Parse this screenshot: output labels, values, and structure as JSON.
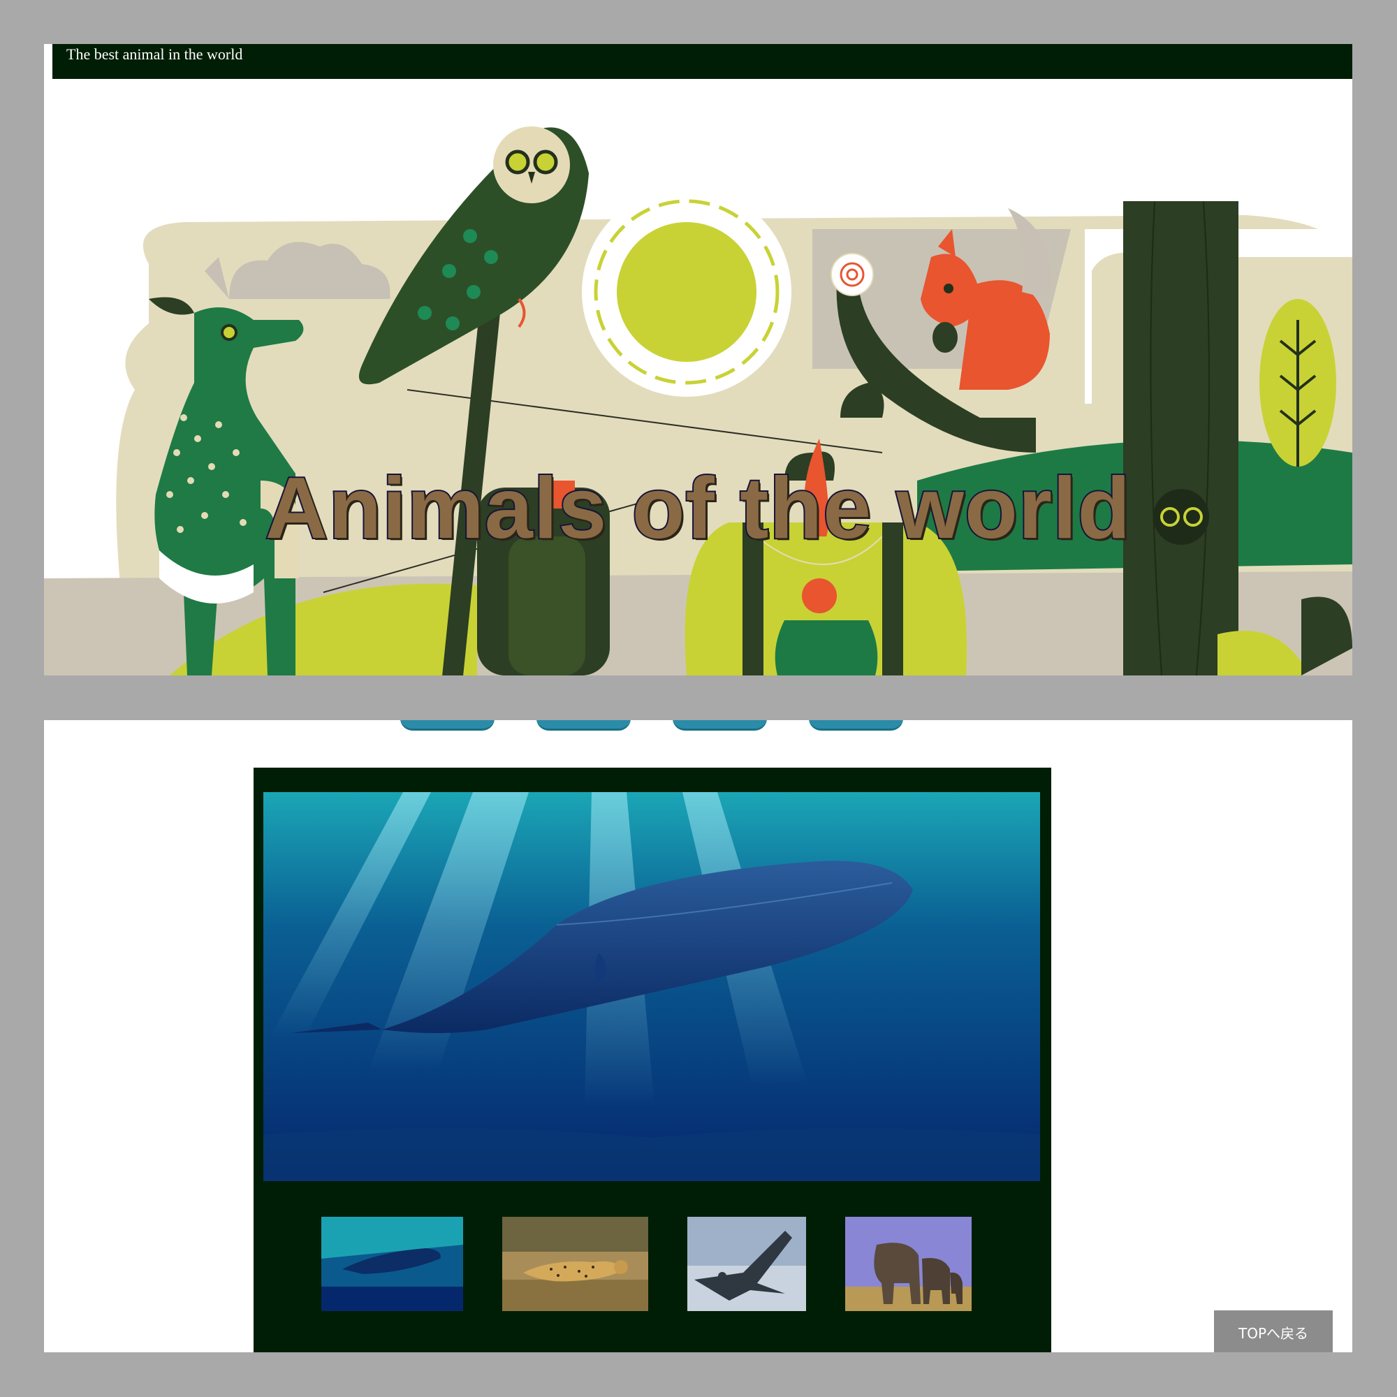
{
  "header": {
    "tagline": "The best animal in the world"
  },
  "hero": {
    "title": "Animals of the world",
    "illustration_subjects": [
      "deer",
      "owl",
      "sun",
      "squirrel",
      "person",
      "tree",
      "owl-eyes"
    ]
  },
  "nav": {
    "tab_count": 4,
    "tab_color": "#2a8ca8"
  },
  "gallery": {
    "main_image_subject": "blue-whale-underwater",
    "thumbnails": [
      {
        "subject": "blue-whale"
      },
      {
        "subject": "cheetah"
      },
      {
        "subject": "falcon"
      },
      {
        "subject": "elephants"
      }
    ]
  },
  "back_to_top": {
    "label": "TOPへ戻る"
  },
  "colors": {
    "page_background": "#a9a9a9",
    "header_bar": "#001e05",
    "gallery_background": "#001e05",
    "button_background": "#8c8c8c",
    "hero_title_fill": "#8a6a45",
    "hero_title_stroke": "#16143a"
  }
}
